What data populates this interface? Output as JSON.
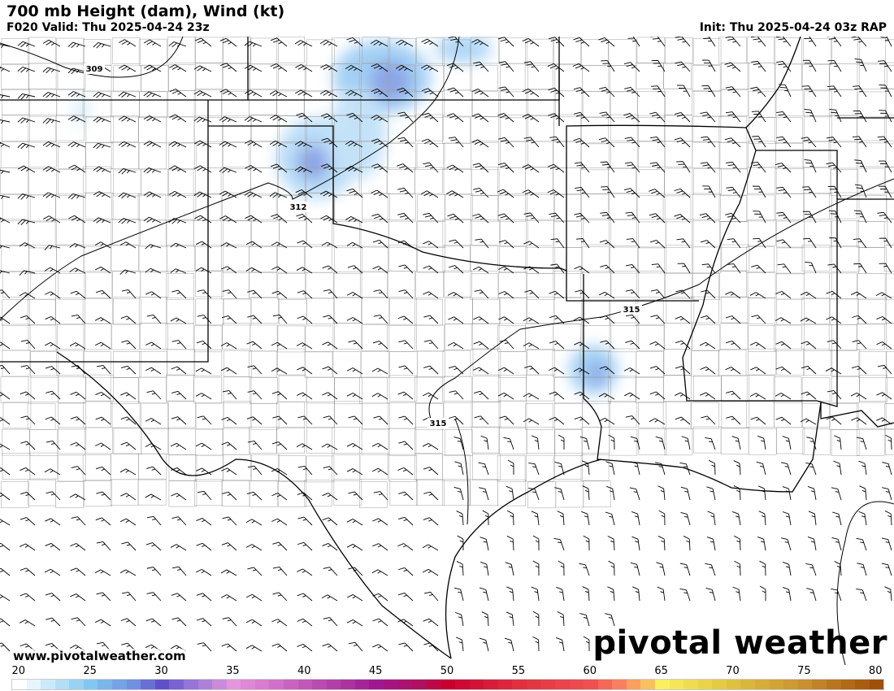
{
  "header": {
    "title": "700 mb Height (dam), Wind (kt)",
    "valid": "F020 Valid: Thu 2025-04-24 23z",
    "init": "Init: Thu 2025-04-24 03z RAP"
  },
  "map": {
    "contour_labels": [
      "309",
      "312",
      "315",
      "315"
    ],
    "contour_color": "#000000",
    "border_color": "#000000",
    "county_color": "#9a9a9a",
    "wind_shading_color": "#5a9ee8"
  },
  "footer": {
    "website": "www.pivotalweather.com",
    "logo": "pivotal weather"
  },
  "colorbar": {
    "min": 20,
    "max": 80,
    "tick_labels": [
      "20",
      "25",
      "30",
      "35",
      "40",
      "45",
      "50",
      "55",
      "60",
      "65",
      "70",
      "75",
      "80"
    ],
    "stops": [
      [
        20,
        "#ffffff"
      ],
      [
        22,
        "#cce9f9"
      ],
      [
        25,
        "#80c8f0"
      ],
      [
        28,
        "#7090e0"
      ],
      [
        30,
        "#6050c8"
      ],
      [
        32,
        "#9575d5"
      ],
      [
        35,
        "#e496dc"
      ],
      [
        38,
        "#d070c8"
      ],
      [
        42,
        "#b040a8"
      ],
      [
        45,
        "#a01890"
      ],
      [
        48,
        "#b01060"
      ],
      [
        50,
        "#c80030"
      ],
      [
        55,
        "#e03040"
      ],
      [
        60,
        "#f05050"
      ],
      [
        62,
        "#f88060"
      ],
      [
        64,
        "#f8c060"
      ],
      [
        65,
        "#f8f060"
      ],
      [
        70,
        "#e0c040"
      ],
      [
        75,
        "#c89030"
      ],
      [
        80,
        "#a05008"
      ]
    ]
  }
}
